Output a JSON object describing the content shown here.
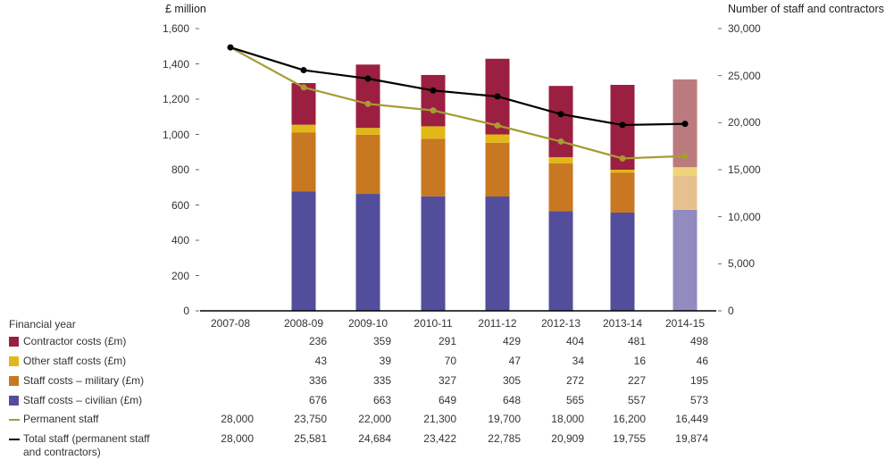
{
  "chart_data": {
    "type": "bar",
    "subtype": "stacked bar with line overlay (dual axis)",
    "left_axis": {
      "title": "£ million",
      "ylim": [
        0,
        1600
      ],
      "ticks": [
        "0",
        "200",
        "400",
        "600",
        "800",
        "1,000",
        "1,200",
        "1,400",
        "1,600"
      ],
      "tick_values": [
        0,
        200,
        400,
        600,
        800,
        1000,
        1200,
        1400,
        1600
      ]
    },
    "right_axis": {
      "title": "Number of staff and contractors",
      "ylim": [
        0,
        30000
      ],
      "ticks": [
        "0",
        "5,000",
        "10,000",
        "15,000",
        "20,000",
        "25,000",
        "30,000"
      ],
      "tick_values": [
        0,
        5000,
        10000,
        15000,
        20000,
        25000,
        30000
      ]
    },
    "xlabel": "Financial year",
    "categories": [
      "2007-08",
      "2008-09",
      "2009-10",
      "2010-11",
      "2011-12",
      "2012-13",
      "2013-14",
      "2014-15"
    ],
    "bar_series": [
      {
        "name": "Staff costs – civilian (£m)",
        "color": "#534e9b",
        "forecast_color": "#928bc0",
        "values": [
          null,
          676,
          663,
          649,
          648,
          565,
          557,
          573
        ],
        "display": [
          "",
          "676",
          "663",
          "649",
          "648",
          "565",
          "557",
          "573"
        ]
      },
      {
        "name": "Staff costs – military (£m)",
        "color": "#c87820",
        "forecast_color": "#e7c08f",
        "values": [
          null,
          336,
          335,
          327,
          305,
          272,
          227,
          195
        ],
        "display": [
          "",
          "336",
          "335",
          "327",
          "305",
          "272",
          "227",
          "195"
        ]
      },
      {
        "name": "Other staff costs (£m)",
        "color": "#e2b816",
        "forecast_color": "#eed57a",
        "values": [
          null,
          43,
          39,
          70,
          47,
          34,
          16,
          46
        ],
        "display": [
          "",
          "43",
          "39",
          "70",
          "47",
          "34",
          "16",
          "46"
        ]
      },
      {
        "name": "Contractor costs (£m)",
        "color": "#9b1f40",
        "forecast_color": "#bb7b7e",
        "values": [
          null,
          236,
          359,
          291,
          429,
          404,
          481,
          498
        ],
        "display": [
          "",
          "236",
          "359",
          "291",
          "429",
          "404",
          "481",
          "498"
        ]
      }
    ],
    "line_series": [
      {
        "name": "Permanent staff",
        "color": "#a89a35",
        "axis": "right",
        "values": [
          28000,
          23750,
          22000,
          21300,
          19700,
          18000,
          16200,
          16449
        ],
        "display": [
          "28,000",
          "23,750",
          "22,000",
          "21,300",
          "19,700",
          "18,000",
          "16,200",
          "16,449"
        ]
      },
      {
        "name": "Total staff (permanent staff and contractors)",
        "color": "#000000",
        "axis": "right",
        "values": [
          28000,
          25581,
          24684,
          23422,
          22785,
          20909,
          19755,
          19874
        ],
        "display": [
          "28,000",
          "25,581",
          "24,684",
          "23,422",
          "22,785",
          "20,909",
          "19,755",
          "19,874"
        ]
      }
    ],
    "forecast_category": "2014-15",
    "grid": false
  },
  "table": {
    "header": "Financial year",
    "rows": [
      {
        "label": "Contractor costs (£m)",
        "key": "contractor"
      },
      {
        "label": "Other staff costs (£m)",
        "key": "other"
      },
      {
        "label": "Staff costs – military (£m)",
        "key": "military"
      },
      {
        "label": "Staff costs – civilian (£m)",
        "key": "civilian"
      },
      {
        "label": "Permanent staff",
        "key": "permanent"
      },
      {
        "label": "Total staff (permanent staff",
        "label2": "and contractors)",
        "key": "total"
      }
    ]
  }
}
